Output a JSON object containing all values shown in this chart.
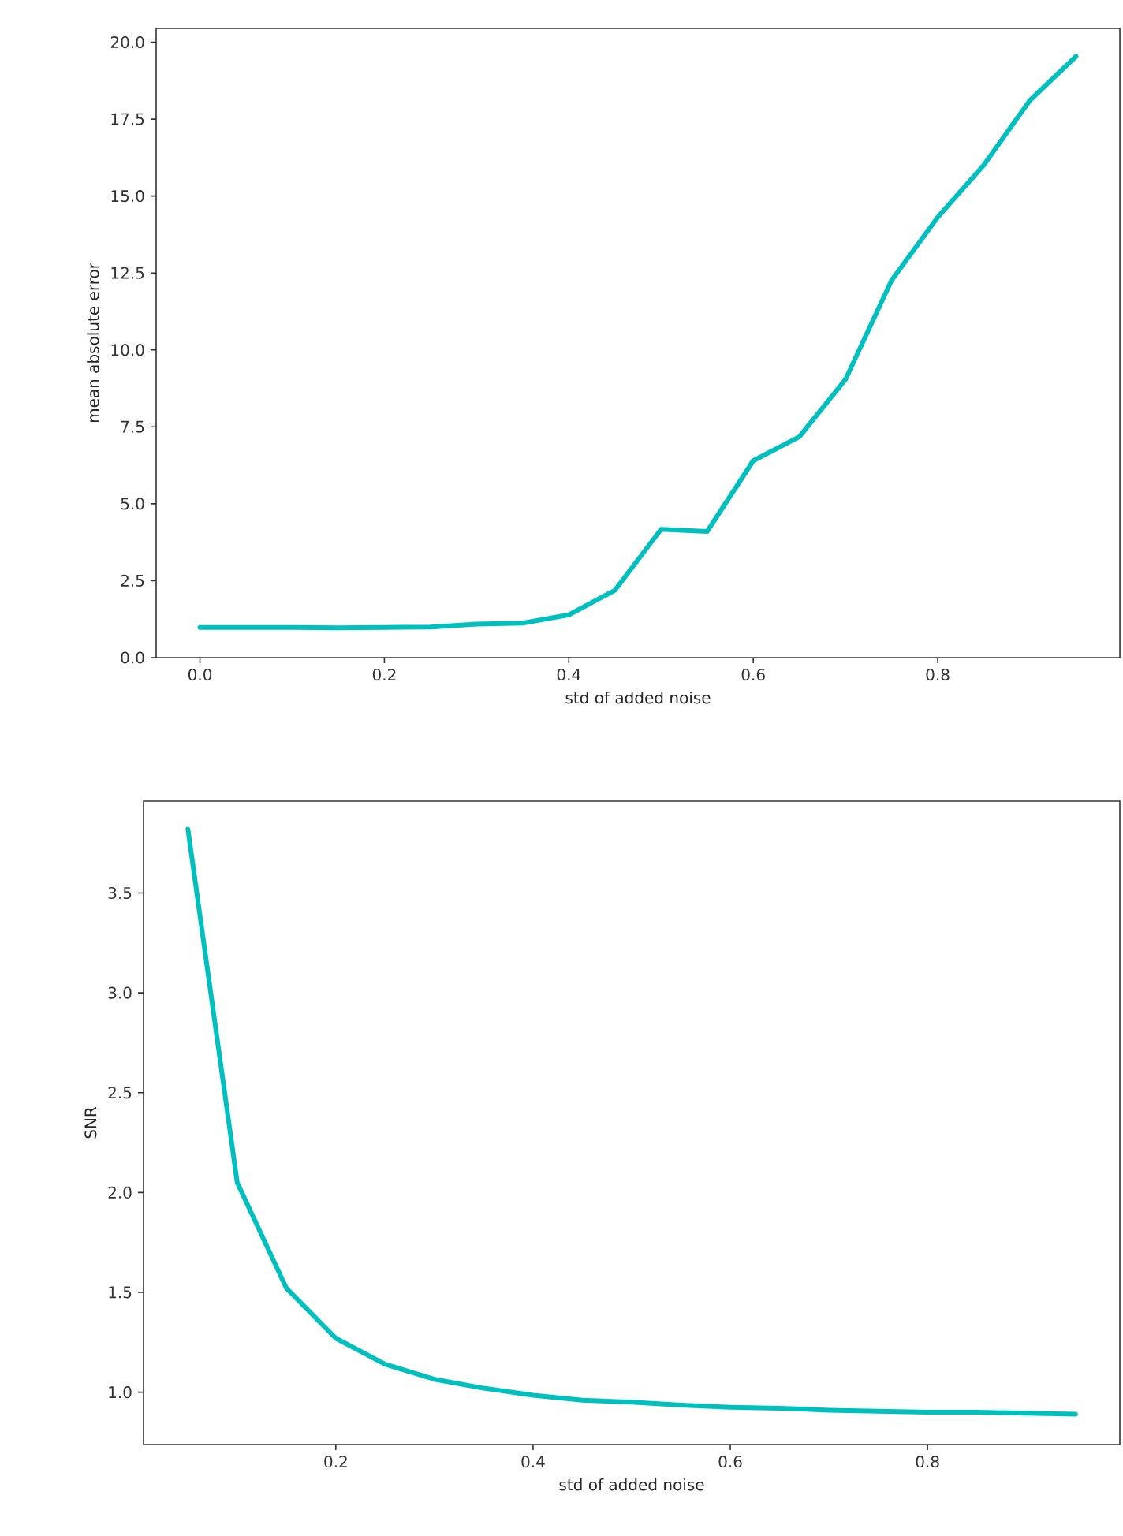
{
  "chart_data": [
    {
      "type": "line",
      "xlabel": "std of added noise",
      "ylabel": "mean absolute error",
      "x": [
        0.0,
        0.05,
        0.1,
        0.15,
        0.2,
        0.25,
        0.3,
        0.35,
        0.4,
        0.45,
        0.5,
        0.55,
        0.6,
        0.65,
        0.7,
        0.75,
        0.8,
        0.85,
        0.9,
        0.95
      ],
      "series": [
        {
          "color": "#00bfbf",
          "values": [
            0.98,
            0.98,
            0.98,
            0.97,
            0.98,
            0.99,
            1.09,
            1.12,
            1.39,
            2.19,
            4.17,
            4.1,
            6.4,
            7.18,
            9.04,
            12.26,
            14.31,
            16.01,
            18.11,
            19.54
          ]
        }
      ],
      "xlim": [
        -0.0475,
        0.9975
      ],
      "ylim": [
        0,
        20.45
      ],
      "xticks": [
        {
          "value": 0,
          "label": "0.0"
        },
        {
          "value": 0.2,
          "label": "0.2"
        },
        {
          "value": 0.4,
          "label": "0.4"
        },
        {
          "value": 0.6,
          "label": "0.6"
        },
        {
          "value": 0.8,
          "label": "0.8"
        }
      ],
      "yticks": [
        {
          "value": 0,
          "label": "0.0"
        },
        {
          "value": 2.5,
          "label": "2.5"
        },
        {
          "value": 5,
          "label": "5.0"
        },
        {
          "value": 7.5,
          "label": "7.5"
        },
        {
          "value": 10,
          "label": "10.0"
        },
        {
          "value": 12.5,
          "label": "12.5"
        },
        {
          "value": 15,
          "label": "15.0"
        },
        {
          "value": 17.5,
          "label": "17.5"
        },
        {
          "value": 20,
          "label": "20.0"
        }
      ],
      "grid": false,
      "marker": "none",
      "line_style": "solid"
    },
    {
      "type": "line",
      "xlabel": "std of added noise",
      "ylabel": "SNR",
      "x": [
        0.05,
        0.1,
        0.15,
        0.2,
        0.25,
        0.3,
        0.35,
        0.4,
        0.45,
        0.5,
        0.55,
        0.6,
        0.65,
        0.7,
        0.75,
        0.8,
        0.85,
        0.9,
        0.95
      ],
      "series": [
        {
          "color": "#00bfbf",
          "values": [
            3.82,
            2.05,
            1.52,
            1.27,
            1.14,
            1.065,
            1.02,
            0.985,
            0.96,
            0.95,
            0.935,
            0.925,
            0.92,
            0.91,
            0.905,
            0.9,
            0.9,
            0.895,
            0.89
          ]
        }
      ],
      "xlim": [
        0.005,
        0.995
      ],
      "ylim": [
        0.738,
        3.96
      ],
      "xticks": [
        0.2,
        0.4,
        0.6,
        0.8
      ],
      "yticks": [
        {
          "value": 1,
          "label": "1.0"
        },
        {
          "value": 1.5,
          "label": "1.5"
        },
        {
          "value": 2,
          "label": "2.0"
        },
        {
          "value": 2.5,
          "label": "2.5"
        },
        {
          "value": 3,
          "label": "3.0"
        },
        {
          "value": 3.5,
          "label": "3.5"
        }
      ],
      "grid": false,
      "marker": "none",
      "line_style": "solid"
    }
  ]
}
